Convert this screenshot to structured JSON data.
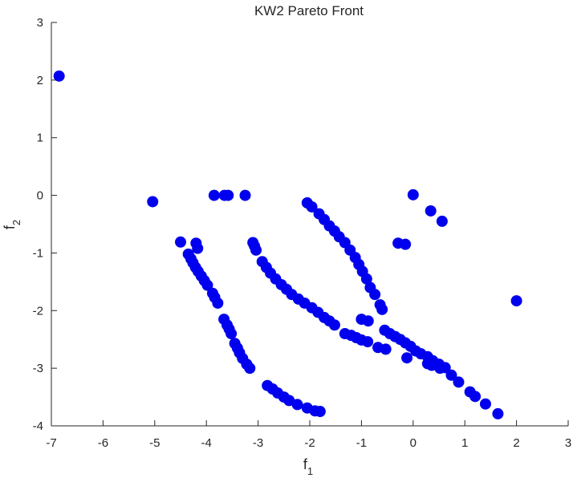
{
  "chart_data": {
    "type": "scatter",
    "title": "KW2 Pareto Front",
    "xlabel": "f",
    "xlabel_sub": "1",
    "ylabel": "f",
    "ylabel_sub": "2",
    "xlim": [
      -7,
      3
    ],
    "ylim": [
      -4,
      3
    ],
    "xticks": [
      -7,
      -6,
      -5,
      -4,
      -3,
      -2,
      -1,
      0,
      1,
      2,
      3
    ],
    "yticks": [
      -4,
      -3,
      -2,
      -1,
      0,
      1,
      2,
      3
    ],
    "grid": false,
    "marker_color": "#0000ee",
    "series": [
      {
        "points": [
          [
            -6.85,
            2.07
          ],
          [
            -5.04,
            -0.11
          ],
          [
            -3.85,
            0.0
          ],
          [
            -3.65,
            0.0
          ],
          [
            -3.58,
            0.0
          ],
          [
            -3.25,
            0.0
          ],
          [
            0.0,
            0.01
          ],
          [
            0.34,
            -0.27
          ],
          [
            0.56,
            -0.45
          ],
          [
            -0.29,
            -0.83
          ],
          [
            -0.15,
            -0.85
          ],
          [
            2.0,
            -1.83
          ],
          [
            -4.5,
            -0.81
          ],
          [
            -4.2,
            -0.83
          ],
          [
            -4.17,
            -0.92
          ],
          [
            -4.35,
            -1.02
          ],
          [
            -4.3,
            -1.1
          ],
          [
            -4.26,
            -1.17
          ],
          [
            -4.21,
            -1.25
          ],
          [
            -4.16,
            -1.32
          ],
          [
            -4.1,
            -1.4
          ],
          [
            -4.04,
            -1.48
          ],
          [
            -3.98,
            -1.56
          ],
          [
            -3.88,
            -1.7
          ],
          [
            -3.84,
            -1.77
          ],
          [
            -3.78,
            -1.87
          ],
          [
            -3.66,
            -2.15
          ],
          [
            -3.6,
            -2.25
          ],
          [
            -3.56,
            -2.32
          ],
          [
            -3.52,
            -2.4
          ],
          [
            -3.45,
            -2.57
          ],
          [
            -3.4,
            -2.65
          ],
          [
            -3.36,
            -2.73
          ],
          [
            -3.3,
            -2.83
          ],
          [
            -3.22,
            -2.93
          ],
          [
            -3.16,
            -3.0
          ],
          [
            -2.82,
            -3.3
          ],
          [
            -2.72,
            -3.36
          ],
          [
            -2.62,
            -3.43
          ],
          [
            -2.5,
            -3.5
          ],
          [
            -2.4,
            -3.56
          ],
          [
            -2.24,
            -3.63
          ],
          [
            -2.05,
            -3.69
          ],
          [
            -1.9,
            -3.74
          ],
          [
            -1.8,
            -3.75
          ],
          [
            -3.1,
            -0.82
          ],
          [
            -3.07,
            -0.88
          ],
          [
            -3.04,
            -0.95
          ],
          [
            -2.92,
            -1.15
          ],
          [
            -2.84,
            -1.25
          ],
          [
            -2.76,
            -1.35
          ],
          [
            -2.66,
            -1.45
          ],
          [
            -2.55,
            -1.55
          ],
          [
            -2.45,
            -1.63
          ],
          [
            -2.35,
            -1.72
          ],
          [
            -2.22,
            -1.8
          ],
          [
            -2.1,
            -1.87
          ],
          [
            -1.96,
            -1.95
          ],
          [
            -1.84,
            -2.03
          ],
          [
            -1.72,
            -2.12
          ],
          [
            -1.62,
            -2.18
          ],
          [
            -1.52,
            -2.25
          ],
          [
            -2.05,
            -0.13
          ],
          [
            -1.96,
            -0.2
          ],
          [
            -1.82,
            -0.32
          ],
          [
            -1.72,
            -0.42
          ],
          [
            -1.62,
            -0.53
          ],
          [
            -1.52,
            -0.62
          ],
          [
            -1.43,
            -0.72
          ],
          [
            -1.32,
            -0.82
          ],
          [
            -1.22,
            -0.95
          ],
          [
            -1.12,
            -1.08
          ],
          [
            -1.05,
            -1.2
          ],
          [
            -0.98,
            -1.32
          ],
          [
            -0.9,
            -1.45
          ],
          [
            -0.83,
            -1.6
          ],
          [
            -0.74,
            -1.72
          ],
          [
            -0.64,
            -1.9
          ],
          [
            -0.6,
            -1.98
          ],
          [
            -1.0,
            -2.15
          ],
          [
            -0.87,
            -2.18
          ],
          [
            -1.32,
            -2.4
          ],
          [
            -1.2,
            -2.43
          ],
          [
            -1.1,
            -2.47
          ],
          [
            -1.0,
            -2.51
          ],
          [
            -0.88,
            -2.54
          ],
          [
            -0.68,
            -2.64
          ],
          [
            -0.53,
            -2.67
          ],
          [
            -0.55,
            -2.34
          ],
          [
            -0.45,
            -2.4
          ],
          [
            -0.35,
            -2.45
          ],
          [
            -0.25,
            -2.5
          ],
          [
            -0.15,
            -2.56
          ],
          [
            -0.05,
            -2.62
          ],
          [
            0.05,
            -2.7
          ],
          [
            0.15,
            -2.75
          ],
          [
            0.28,
            -2.8
          ],
          [
            0.38,
            -2.87
          ],
          [
            0.5,
            -2.93
          ],
          [
            0.62,
            -2.99
          ],
          [
            0.74,
            -3.12
          ],
          [
            0.88,
            -3.24
          ],
          [
            1.1,
            -3.41
          ],
          [
            1.2,
            -3.49
          ],
          [
            1.4,
            -3.62
          ],
          [
            1.64,
            -3.79
          ],
          [
            -0.12,
            -2.82
          ],
          [
            0.28,
            -2.92
          ],
          [
            0.36,
            -2.95
          ],
          [
            0.52,
            -3.0
          ]
        ]
      }
    ]
  }
}
